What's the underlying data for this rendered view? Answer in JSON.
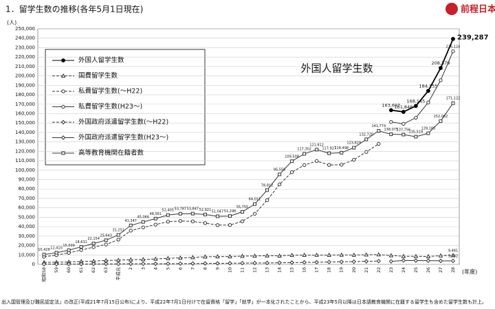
{
  "header": {
    "title": "1．留学生数の推移(各年5月1日現在)",
    "logo": "前程日本"
  },
  "chart_data": {
    "type": "line",
    "annotation": "外国人留学生数",
    "y_unit": "(人)",
    "x_unit": "(年度)",
    "categories": [
      "昭和58",
      "59",
      "60",
      "61",
      "62",
      "63",
      "平成元",
      "2",
      "3",
      "4",
      "5",
      "6",
      "7",
      "8",
      "9",
      "10",
      "11",
      "12",
      "13",
      "14",
      "15",
      "16",
      "17",
      "18",
      "19",
      "20",
      "21",
      "22",
      "23",
      "24",
      "25",
      "26",
      "27",
      "28"
    ],
    "ylim": [
      0,
      250000
    ],
    "yticks": [
      {
        "value": 0,
        "label": "0"
      },
      {
        "value": 10000,
        "label": "10,000"
      },
      {
        "value": 20000,
        "label": "20,000"
      },
      {
        "value": 30000,
        "label": "30,000"
      },
      {
        "value": 40000,
        "label": "40,000"
      },
      {
        "value": 50000,
        "label": "50,000"
      },
      {
        "value": 60000,
        "label": "60,000"
      },
      {
        "value": 70000,
        "label": "70,000"
      },
      {
        "value": 80000,
        "label": "80,000"
      },
      {
        "value": 90000,
        "label": "90,000"
      },
      {
        "value": 100000,
        "label": "100,000"
      },
      {
        "value": 110000,
        "label": "110,000"
      },
      {
        "value": 120000,
        "label": "120,000"
      },
      {
        "value": 130000,
        "label": "130,000"
      },
      {
        "value": 140000,
        "label": "140,000"
      },
      {
        "value": 150000,
        "label": "150,000"
      },
      {
        "value": 160000,
        "label": "160,000"
      },
      {
        "value": 170000,
        "label": "170,000"
      },
      {
        "value": 180000,
        "label": "180,000"
      },
      {
        "value": 190000,
        "label": "190,000"
      },
      {
        "value": 200000,
        "label": "200,000"
      },
      {
        "value": 210000,
        "label": "210,000"
      },
      {
        "value": 220000,
        "label": "220,000"
      },
      {
        "value": 230000,
        "label": "230,000"
      },
      {
        "value": 240000,
        "label": "240,000"
      },
      {
        "value": 250000,
        "label": "250,000"
      }
    ],
    "grid": true,
    "series": [
      {
        "name": "外国人留学生数",
        "color": "#000000",
        "marker": "circle-filled",
        "dash": false,
        "values": [
          null,
          null,
          null,
          null,
          null,
          null,
          null,
          null,
          null,
          null,
          null,
          null,
          null,
          null,
          null,
          null,
          null,
          null,
          null,
          null,
          null,
          null,
          null,
          null,
          null,
          null,
          null,
          null,
          163697,
          161848,
          168145,
          184155,
          208379,
          239287
        ],
        "value_labels": [
          null,
          null,
          null,
          null,
          null,
          null,
          null,
          null,
          null,
          null,
          null,
          null,
          null,
          null,
          null,
          null,
          null,
          null,
          null,
          null,
          null,
          null,
          null,
          null,
          null,
          null,
          null,
          null,
          "163,697",
          "161,848",
          "168,145",
          "184,155",
          "208,379",
          "239,287"
        ]
      },
      {
        "name": "国費留学生数",
        "color": "#333333",
        "marker": "triangle",
        "dash": true,
        "values": [
          2082,
          2345,
          2502,
          3077,
          3458,
          4118,
          4465,
          4961,
          5219,
          5699,
          6408,
          6880,
          7371,
          8051,
          8250,
          8323,
          8774,
          8930,
          9173,
          9009,
          9746,
          9804,
          9891,
          9869,
          10020,
          9923,
          10168,
          10349,
          9396,
          8588,
          8529,
          8351,
          9223,
          9481
        ],
        "value_labels": [
          null,
          null,
          null,
          null,
          null,
          null,
          null,
          null,
          null,
          null,
          null,
          null,
          null,
          null,
          null,
          null,
          null,
          null,
          null,
          null,
          null,
          null,
          null,
          null,
          null,
          null,
          null,
          null,
          null,
          null,
          null,
          null,
          null,
          "9,481"
        ]
      },
      {
        "name": "私費留学生数(～H22)",
        "color": "#333333",
        "marker": "circle-open",
        "dash": true,
        "values": [
          8116,
          9815,
          12207,
          15204,
          18296,
          21075,
          26286,
          35836,
          39247,
          42212,
          45297,
          46107,
          45576,
          43870,
          41697,
          41775,
          45681,
          53681,
          68139,
          84841,
          97862,
          105398,
          109621,
          105558,
          105778,
          111006,
          119352,
          127920,
          null,
          null,
          null,
          null,
          null,
          null
        ]
      },
      {
        "name": "私費留学生数(H23～)",
        "color": "#333333",
        "marker": "circle-open",
        "dash": false,
        "values": [
          null,
          null,
          null,
          null,
          null,
          null,
          null,
          null,
          null,
          null,
          null,
          null,
          null,
          null,
          null,
          null,
          null,
          null,
          null,
          null,
          null,
          null,
          null,
          null,
          null,
          null,
          null,
          null,
          151138,
          149132,
          155617,
          171869,
          195419,
          226124
        ],
        "value_labels": [
          null,
          null,
          null,
          null,
          null,
          null,
          null,
          null,
          null,
          null,
          null,
          null,
          null,
          null,
          null,
          null,
          null,
          null,
          null,
          null,
          null,
          null,
          null,
          null,
          null,
          null,
          null,
          null,
          null,
          null,
          null,
          null,
          null,
          "226,124"
        ]
      },
      {
        "name": "外国政府派遣留学生数(～H22)",
        "color": "#333333",
        "marker": "diamond",
        "dash": true,
        "values": [
          230,
          250,
          300,
          350,
          400,
          450,
          500,
          550,
          600,
          650,
          700,
          800,
          900,
          1000,
          1100,
          1200,
          1300,
          1400,
          1500,
          1700,
          1900,
          2100,
          2300,
          2500,
          2700,
          2900,
          3200,
          3505,
          null,
          null,
          null,
          null,
          null,
          null
        ]
      },
      {
        "name": "外国政府派遣留学生数(H23～)",
        "color": "#333333",
        "marker": "diamond",
        "dash": false,
        "values": [
          null,
          null,
          null,
          null,
          null,
          null,
          null,
          null,
          null,
          null,
          null,
          null,
          null,
          null,
          null,
          null,
          null,
          null,
          null,
          null,
          null,
          null,
          null,
          null,
          null,
          null,
          null,
          null,
          3163,
          4128,
          3999,
          3935,
          3737,
          3682
        ],
        "value_labels": [
          null,
          null,
          null,
          null,
          null,
          null,
          null,
          null,
          null,
          null,
          null,
          null,
          null,
          null,
          null,
          null,
          null,
          null,
          null,
          null,
          null,
          null,
          null,
          null,
          null,
          null,
          null,
          null,
          null,
          null,
          null,
          null,
          null,
          "3,682"
        ]
      },
      {
        "name": "高等教育機関在籍者数",
        "color": "#333333",
        "marker": "square",
        "dash": false,
        "values": [
          10428,
          12410,
          15009,
          18631,
          22154,
          25643,
          31251,
          41347,
          45066,
          48561,
          52405,
          53787,
          53847,
          52921,
          51047,
          51298,
          55755,
          64011,
          78812,
          95550,
          109508,
          117302,
          121812,
          117927,
          118498,
          123829,
          132720,
          141774,
          138075,
          137756,
          135519,
          139185,
          152062,
          171122
        ],
        "value_labels": [
          "10,428",
          "12,410",
          "15,009",
          "18,631",
          "22,154",
          "25,643",
          "31,251",
          "41,347",
          "45,066",
          "48,561",
          "52,405",
          "53,787",
          "53,847",
          "52,921",
          "51,047",
          "51,298",
          "55,755",
          "64,011",
          "78,812",
          "95,550",
          "109,508",
          "117,302",
          "121,812",
          "117,927",
          "118,498",
          "123,829",
          "132,720",
          "141,774",
          "138,075",
          "137,756",
          "135,519",
          "139,185",
          "152,062",
          "171,122"
        ]
      }
    ]
  },
  "footnote": "出入国管理及び難民認定法」の改正(平成21年7月15日公布)により、平成22年7月1日付けで在留資格「留学」「就学」が一本化されたことから、平成23年5月以降は日本語教育機関に在籍する留学生も含めた留学生数も計上。"
}
